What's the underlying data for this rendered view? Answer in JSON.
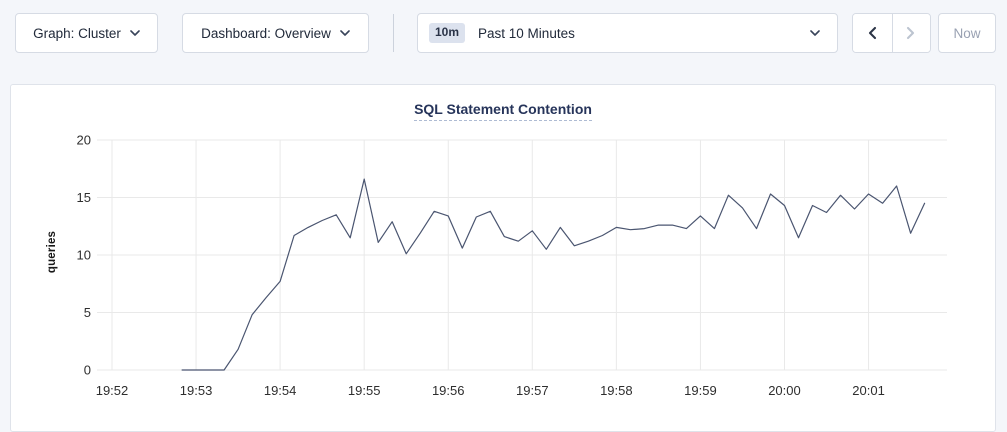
{
  "toolbar": {
    "graph_dropdown": {
      "label": "Graph: Cluster"
    },
    "dashboard_dropdown": {
      "label": "Dashboard: Overview"
    },
    "time_range": {
      "badge": "10m",
      "label": "Past 10 Minutes"
    },
    "now_button": {
      "label": "Now",
      "disabled": true
    },
    "prev_button": {
      "disabled": false
    },
    "next_button": {
      "disabled": true
    }
  },
  "chart": {
    "title": "SQL Statement Contention"
  },
  "colors": {
    "line": "#4a5570",
    "grid": "#e9e9e9",
    "tick_text": "#2e2e2e",
    "title_navy": "#26345a",
    "page_bg": "#f4f6fa"
  },
  "chart_data": {
    "type": "line",
    "title": "SQL Statement Contention",
    "xlabel": "",
    "ylabel": "queries",
    "ylim": [
      0,
      20
    ],
    "yticks": [
      0,
      5,
      10,
      15,
      20
    ],
    "grid": true,
    "legend": "none",
    "x_axis": {
      "axis_start": "19:52:00",
      "axis_span_seconds": 596,
      "tick_interval_seconds": 60,
      "tick_labels": [
        "19:52",
        "19:53",
        "19:54",
        "19:55",
        "19:56",
        "19:57",
        "19:58",
        "19:59",
        "20:00",
        "20:01"
      ]
    },
    "series": [
      {
        "name": "SQL Statement Contention",
        "x_start": "19:52:50",
        "x_step_seconds": 10,
        "x_times": [
          "19:52:50",
          "19:53:00",
          "19:53:10",
          "19:53:20",
          "19:53:30",
          "19:53:40",
          "19:53:50",
          "19:54:00",
          "19:54:10",
          "19:54:20",
          "19:54:30",
          "19:54:40",
          "19:54:50",
          "19:55:00",
          "19:55:10",
          "19:55:20",
          "19:55:30",
          "19:55:40",
          "19:55:50",
          "19:56:00",
          "19:56:10",
          "19:56:20",
          "19:56:30",
          "19:56:40",
          "19:56:50",
          "19:57:00",
          "19:57:10",
          "19:57:20",
          "19:57:30",
          "19:57:40",
          "19:57:50",
          "19:58:00",
          "19:58:10",
          "19:58:20",
          "19:58:30",
          "19:58:40",
          "19:58:50",
          "19:59:00",
          "19:59:10",
          "19:59:20",
          "19:59:30",
          "19:59:40",
          "19:59:50",
          "20:00:00",
          "20:00:10",
          "20:00:20",
          "20:00:30",
          "20:00:40",
          "20:00:50",
          "20:01:00",
          "20:01:10",
          "20:01:20",
          "20:01:30",
          "20:01:40"
        ],
        "values": [
          0,
          0,
          0,
          0,
          1.8,
          4.8,
          6.3,
          7.7,
          11.7,
          12.4,
          13,
          13.5,
          11.5,
          16.6,
          11.1,
          12.9,
          10.1,
          11.9,
          13.8,
          13.4,
          10.6,
          13.3,
          13.8,
          11.6,
          11.2,
          12.1,
          10.5,
          12.4,
          10.8,
          11.2,
          11.7,
          12.4,
          12.2,
          12.3,
          12.6,
          12.6,
          12.3,
          13.4,
          12.3,
          15.2,
          14.1,
          12.3,
          15.3,
          14.3,
          11.5,
          14.3,
          13.7,
          15.2,
          14,
          15.3,
          14.5,
          16,
          11.9,
          14.5
        ]
      }
    ]
  }
}
